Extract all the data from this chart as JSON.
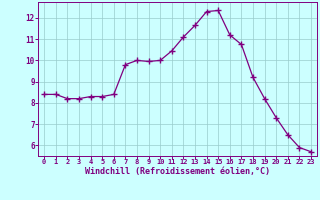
{
  "x": [
    0,
    1,
    2,
    3,
    4,
    5,
    6,
    7,
    8,
    9,
    10,
    11,
    12,
    13,
    14,
    15,
    16,
    17,
    18,
    19,
    20,
    21,
    22,
    23
  ],
  "y": [
    8.4,
    8.4,
    8.2,
    8.2,
    8.3,
    8.3,
    8.4,
    9.8,
    10.0,
    9.95,
    10.0,
    10.45,
    11.1,
    11.65,
    12.3,
    12.35,
    11.2,
    10.75,
    9.2,
    8.2,
    7.3,
    6.5,
    5.9,
    5.7
  ],
  "line_color": "#800080",
  "marker": "+",
  "markersize": 4,
  "linewidth": 0.9,
  "background_color": "#ccffff",
  "grid_color": "#99cccc",
  "xlabel": "Windchill (Refroidissement éolien,°C)",
  "xlabel_color": "#800080",
  "ylabel_ticks": [
    6,
    7,
    8,
    9,
    10,
    11,
    12
  ],
  "xtick_labels": [
    "0",
    "1",
    "2",
    "3",
    "4",
    "5",
    "6",
    "7",
    "8",
    "9",
    "10",
    "11",
    "12",
    "13",
    "14",
    "15",
    "16",
    "17",
    "18",
    "19",
    "20",
    "21",
    "22",
    "23"
  ],
  "ylim": [
    5.5,
    12.75
  ],
  "xlim": [
    -0.5,
    23.5
  ],
  "tick_color": "#800080",
  "spine_color": "#800080",
  "tick_fontsize": 5.0,
  "ylabel_fontsize": 5.5,
  "xlabel_fontsize": 6.0
}
